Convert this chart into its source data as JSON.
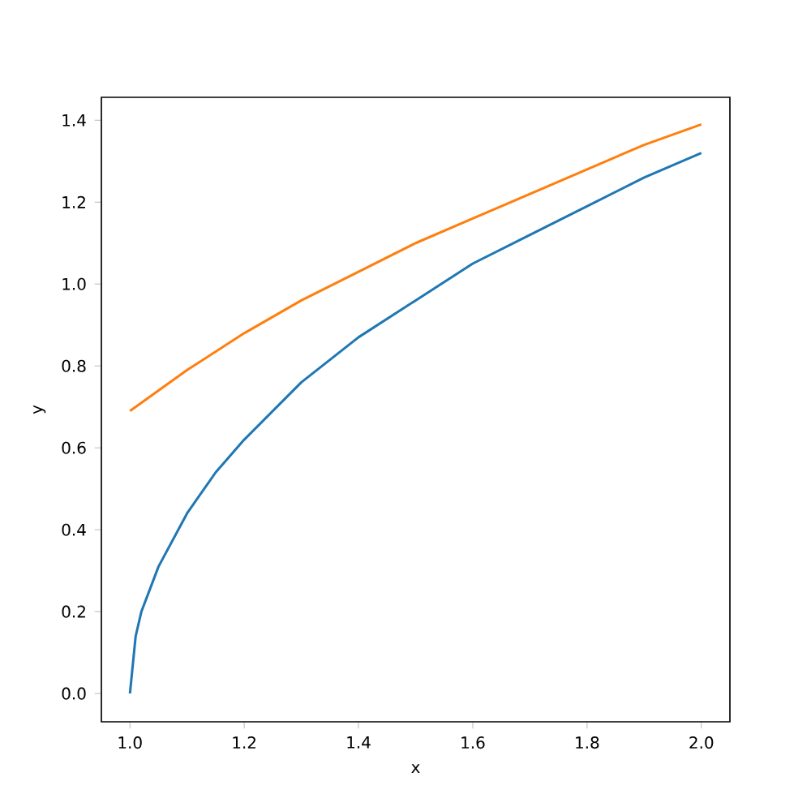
{
  "chart_data": {
    "type": "line",
    "xlabel": "x",
    "ylabel": "y",
    "xlim": [
      0.95,
      2.05
    ],
    "ylim": [
      -0.069,
      1.456
    ],
    "xticks": [
      {
        "value": 1.0,
        "label": "1.0"
      },
      {
        "value": 1.2,
        "label": "1.2"
      },
      {
        "value": 1.4,
        "label": "1.4"
      },
      {
        "value": 1.6,
        "label": "1.6"
      },
      {
        "value": 1.8,
        "label": "1.8"
      },
      {
        "value": 2.0,
        "label": "2.0"
      }
    ],
    "yticks": [
      {
        "value": 0.0,
        "label": "0.0"
      },
      {
        "value": 0.2,
        "label": "0.2"
      },
      {
        "value": 0.4,
        "label": "0.4"
      },
      {
        "value": 0.6,
        "label": "0.6"
      },
      {
        "value": 0.8,
        "label": "0.8"
      },
      {
        "value": 1.0,
        "label": "1.0"
      },
      {
        "value": 1.2,
        "label": "1.2"
      },
      {
        "value": 1.4,
        "label": "1.4"
      }
    ],
    "series": [
      {
        "color": "#1f77b4",
        "x": [
          1.0,
          1.01,
          1.02,
          1.05,
          1.1,
          1.15,
          1.2,
          1.3,
          1.4,
          1.5,
          1.6,
          1.7,
          1.8,
          1.9,
          2.0
        ],
        "values": [
          0.0,
          0.14,
          0.2,
          0.31,
          0.44,
          0.54,
          0.62,
          0.76,
          0.87,
          0.96,
          1.05,
          1.12,
          1.19,
          1.26,
          1.32
        ]
      },
      {
        "color": "#ff7f0e",
        "x": [
          1.0,
          1.1,
          1.2,
          1.3,
          1.4,
          1.5,
          1.6,
          1.7,
          1.8,
          1.9,
          2.0
        ],
        "values": [
          0.69,
          0.79,
          0.88,
          0.96,
          1.03,
          1.1,
          1.16,
          1.22,
          1.28,
          1.34,
          1.39
        ]
      }
    ]
  }
}
